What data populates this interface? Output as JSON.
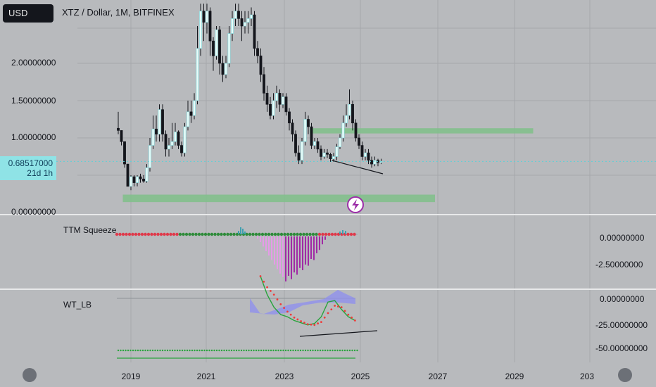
{
  "currency_badge": "USD",
  "chart_title": "XTZ / Dollar, 1M, BITFINEX",
  "price_tag": {
    "price": "0.68517000",
    "countdown": "21d 1h"
  },
  "price_axis": [
    "2.00000000",
    "1.50000000",
    "1.00000000",
    "0.00000000"
  ],
  "time_axis": [
    "2019",
    "2021",
    "2023",
    "2025",
    "2027",
    "2029",
    "203"
  ],
  "panes": {
    "squeeze": {
      "label": "TTM Squeeze",
      "axis": [
        "0.00000000",
        "-2.50000000"
      ]
    },
    "wt": {
      "label": "WT_LB",
      "axis": [
        "0.00000000",
        "-25.00000000",
        "-50.00000000"
      ]
    }
  },
  "colors": {
    "background": "#b8babd",
    "bull_candle": "#e8fbf8",
    "bear_candle": "#14161c",
    "zone": "#7fc08a",
    "squeeze_on": "#e0394a",
    "squeeze_off": "#2e8b3a",
    "hist_dark": "#a12aa5",
    "hist_light": "#e69ae8",
    "wt_fill": "#8e8ef0",
    "wt_green": "#28a43c",
    "wt_red": "#f03a3a"
  },
  "icons": {
    "alert": "lightning-bolt-icon"
  },
  "chart_data": {
    "type": "candlestick",
    "x_axis_ticks": [
      "2019",
      "2021",
      "2023",
      "2025",
      "2027",
      "2029",
      "203"
    ],
    "y_axis_ticks": [
      "0.00000000",
      "1.00000000",
      "1.50000000",
      "2.00000000"
    ],
    "ylim": [
      -0.05,
      2.5
    ],
    "current_price": 0.68517,
    "bars_per_year": 12,
    "candles": [
      [
        1.13,
        1.1,
        1.35,
        1.05
      ],
      [
        1.1,
        0.95,
        1.1,
        0.9
      ],
      [
        0.95,
        0.65,
        0.95,
        0.6
      ],
      [
        0.65,
        0.35,
        0.65,
        0.35
      ],
      [
        0.35,
        0.48,
        0.5,
        0.3
      ],
      [
        0.48,
        0.4,
        0.5,
        0.35
      ],
      [
        0.4,
        0.48,
        0.5,
        0.35
      ],
      [
        0.48,
        0.45,
        0.52,
        0.4
      ],
      [
        0.45,
        0.42,
        0.5,
        0.4
      ],
      [
        0.42,
        0.6,
        0.65,
        0.4
      ],
      [
        0.6,
        0.9,
        1.0,
        0.55
      ],
      [
        0.9,
        1.12,
        1.3,
        0.85
      ],
      [
        1.12,
        1.05,
        1.3,
        0.95
      ],
      [
        1.05,
        1.38,
        1.45,
        0.95
      ],
      [
        1.38,
        1.05,
        1.45,
        0.95
      ],
      [
        1.05,
        0.85,
        1.1,
        0.75
      ],
      [
        0.85,
        0.9,
        1.0,
        0.75
      ],
      [
        0.9,
        0.95,
        1.2,
        0.85
      ],
      [
        0.95,
        1.08,
        1.2,
        0.9
      ],
      [
        1.08,
        0.9,
        1.1,
        0.85
      ],
      [
        0.9,
        0.8,
        0.95,
        0.75
      ],
      [
        0.8,
        1.15,
        1.2,
        0.75
      ],
      [
        1.15,
        1.35,
        1.5,
        1.1
      ],
      [
        1.35,
        1.3,
        1.5,
        1.2
      ],
      [
        1.3,
        1.5,
        1.6,
        1.25
      ],
      [
        1.5,
        2.2,
        2.5,
        1.45
      ],
      [
        2.2,
        2.7,
        2.8,
        2.1
      ],
      [
        2.7,
        2.55,
        2.8,
        2.3
      ],
      [
        2.55,
        2.7,
        2.8,
        2.4
      ],
      [
        2.7,
        2.3,
        2.75,
        2.1
      ],
      [
        2.3,
        2.1,
        2.35,
        1.9
      ],
      [
        2.1,
        2.45,
        2.5,
        2.05
      ],
      [
        2.45,
        2.0,
        2.5,
        1.85
      ],
      [
        2.0,
        1.85,
        2.1,
        1.75
      ],
      [
        1.85,
        2.0,
        2.1,
        1.8
      ],
      [
        2.0,
        2.4,
        2.5,
        1.95
      ],
      [
        2.4,
        2.6,
        2.7,
        2.3
      ],
      [
        2.6,
        2.7,
        2.8,
        2.5
      ],
      [
        2.7,
        2.6,
        2.8,
        2.5
      ],
      [
        2.6,
        2.5,
        2.7,
        2.3
      ],
      [
        2.5,
        2.55,
        2.7,
        2.4
      ],
      [
        2.55,
        2.6,
        2.7,
        2.4
      ],
      [
        2.6,
        2.65,
        2.75,
        2.5
      ],
      [
        2.65,
        2.2,
        2.7,
        2.1
      ],
      [
        2.2,
        2.1,
        2.3,
        2.0
      ],
      [
        2.1,
        1.85,
        2.2,
        1.75
      ],
      [
        1.85,
        1.6,
        1.95,
        1.5
      ],
      [
        1.6,
        1.45,
        1.7,
        1.35
      ],
      [
        1.45,
        1.3,
        1.55,
        1.25
      ],
      [
        1.3,
        1.5,
        1.6,
        1.25
      ],
      [
        1.5,
        1.6,
        1.7,
        1.4
      ],
      [
        1.6,
        1.45,
        1.65,
        1.35
      ],
      [
        1.45,
        1.55,
        1.6,
        1.4
      ],
      [
        1.55,
        1.35,
        1.6,
        1.3
      ],
      [
        1.35,
        1.2,
        1.4,
        1.1
      ],
      [
        1.2,
        1.05,
        1.25,
        0.95
      ],
      [
        1.05,
        0.8,
        1.1,
        0.75
      ],
      [
        0.8,
        0.7,
        0.9,
        0.65
      ],
      [
        0.7,
        0.95,
        1.0,
        0.65
      ],
      [
        0.95,
        1.25,
        1.35,
        0.9
      ],
      [
        1.25,
        1.15,
        1.3,
        1.05
      ],
      [
        1.15,
        0.9,
        1.2,
        0.85
      ],
      [
        0.9,
        0.95,
        1.0,
        0.85
      ],
      [
        0.95,
        0.85,
        1.0,
        0.8
      ],
      [
        0.85,
        0.75,
        0.9,
        0.7
      ],
      [
        0.75,
        0.8,
        0.85,
        0.72
      ],
      [
        0.8,
        0.78,
        0.85,
        0.73
      ],
      [
        0.78,
        0.72,
        0.8,
        0.68
      ],
      [
        0.72,
        0.75,
        0.8,
        0.68
      ],
      [
        0.75,
        0.88,
        0.92,
        0.7
      ],
      [
        0.88,
        1.0,
        1.05,
        0.85
      ],
      [
        1.0,
        1.2,
        1.3,
        0.95
      ],
      [
        1.2,
        1.3,
        1.45,
        1.15
      ],
      [
        1.3,
        1.45,
        1.65,
        1.25
      ],
      [
        1.45,
        1.2,
        1.5,
        1.1
      ],
      [
        1.2,
        1.0,
        1.25,
        0.95
      ],
      [
        1.0,
        0.9,
        1.05,
        0.85
      ],
      [
        0.9,
        0.75,
        0.95,
        0.7
      ],
      [
        0.75,
        0.8,
        0.85,
        0.7
      ],
      [
        0.8,
        0.7,
        0.85,
        0.65
      ],
      [
        0.7,
        0.65,
        0.75,
        0.6
      ],
      [
        0.65,
        0.7,
        0.75,
        0.62
      ],
      [
        0.7,
        0.67,
        0.72,
        0.62
      ],
      [
        0.67,
        0.685,
        0.72,
        0.65
      ]
    ],
    "zones": [
      {
        "from_bar": 1,
        "to_bar": 100,
        "low": 0.14,
        "high": 0.24
      },
      {
        "from_bar": 60,
        "to_bar": 131,
        "low": 1.06,
        "high": 1.13
      }
    ],
    "trendline": {
      "from_bar": 67,
      "from_price": 0.67,
      "to_bar": 101,
      "to_price": 0.52
    },
    "squeeze_histogram": [
      -0.2,
      -0.5,
      -0.9,
      -1.3,
      -1.7,
      -2.1,
      -2.5,
      -2.9,
      -3.3,
      -3.6,
      -4.0,
      -3.5,
      -3.8,
      -3.2,
      -3.4,
      -2.8,
      -3.0,
      -2.5,
      -2.6,
      -2.0,
      -2.1,
      -1.5,
      -1.2,
      -0.7,
      -0.3
    ],
    "wt_series": {
      "green": [
        30,
        5,
        -12,
        -22,
        -25,
        -30,
        -33,
        -36,
        -34,
        -25,
        -5,
        -3,
        -15,
        -25,
        -30
      ],
      "red": [
        30,
        15,
        5,
        -8,
        -18,
        -26,
        -31,
        -35,
        -36,
        -32,
        -20,
        -10,
        -12,
        -22,
        -30
      ]
    }
  }
}
